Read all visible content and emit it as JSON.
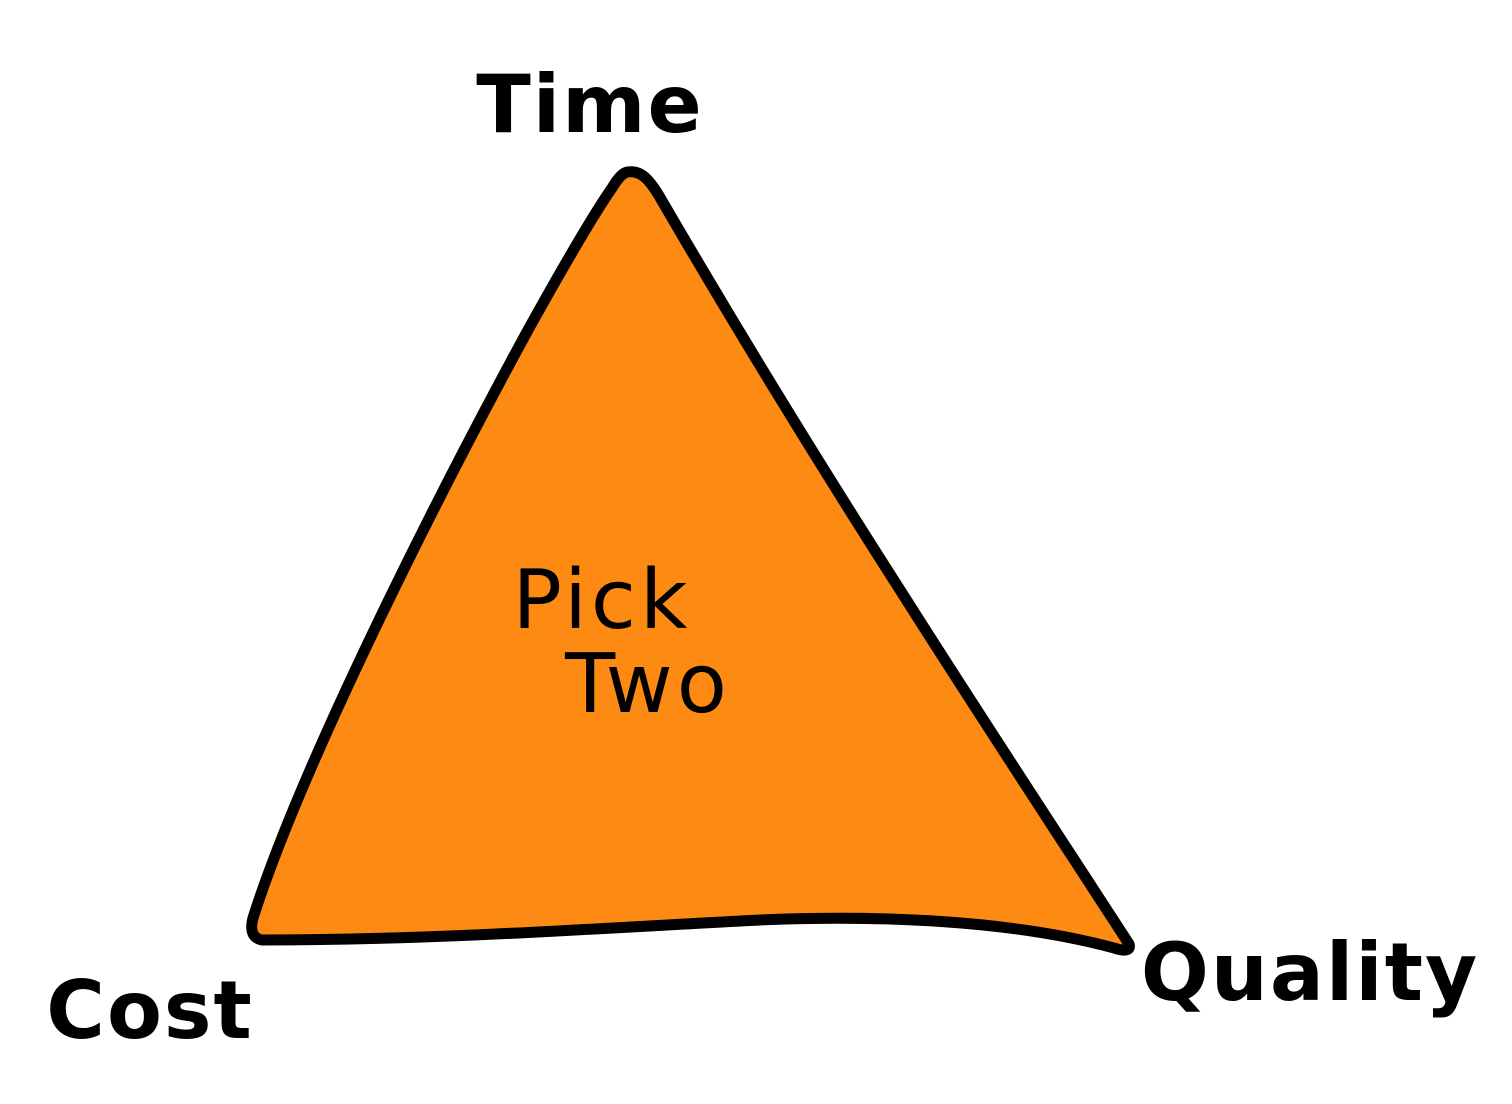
{
  "diagram": {
    "vertices": {
      "top": "Time",
      "bottom_left": "Cost",
      "bottom_right": "Quality"
    },
    "center": {
      "line1": "Pick",
      "line2": "Two"
    },
    "colors": {
      "fill": "#FD8B13",
      "stroke": "#000000",
      "background": "#ffffff"
    }
  }
}
